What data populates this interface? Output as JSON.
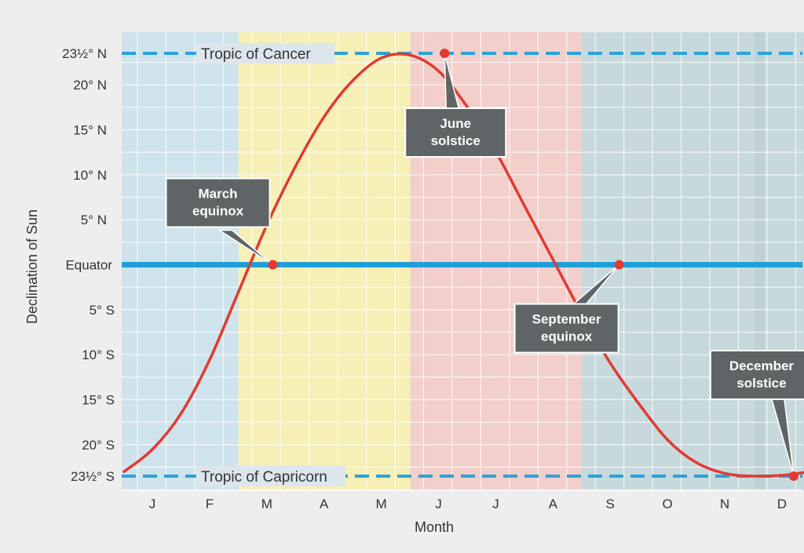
{
  "chart_data": {
    "type": "line",
    "xlabel": "Month",
    "ylabel": "Declination of Sun",
    "months": [
      "J",
      "F",
      "M",
      "A",
      "M",
      "J",
      "J",
      "A",
      "S",
      "O",
      "N",
      "D"
    ],
    "ylim": [
      -23.5,
      23.5
    ],
    "yticks": [
      {
        "value": 23.5,
        "label": "23½° N"
      },
      {
        "value": 20,
        "label": "20° N"
      },
      {
        "value": 15,
        "label": "15° N"
      },
      {
        "value": 10,
        "label": "10° N"
      },
      {
        "value": 5,
        "label": "5° N"
      },
      {
        "value": 0,
        "label": "Equator"
      },
      {
        "value": -5,
        "label": "5° S"
      },
      {
        "value": -10,
        "label": "10° S"
      },
      {
        "value": -15,
        "label": "15° S"
      },
      {
        "value": -20,
        "label": "20° S"
      },
      {
        "value": -23.5,
        "label": "23½° S"
      }
    ],
    "reference_lines": [
      {
        "name": "Tropic of Cancer",
        "value": 23.5,
        "color": "#2aa3d9"
      },
      {
        "name": "Equator",
        "value": 0,
        "color": "#1e9fd8"
      },
      {
        "name": "Tropic of Capricorn",
        "value": -23.5,
        "color": "#2aa3d9"
      }
    ],
    "season_bands": [
      {
        "from": 0,
        "to": 2,
        "color": "#cfe3ec"
      },
      {
        "from": 2,
        "to": 5,
        "color": "#f6efb6"
      },
      {
        "from": 5,
        "to": 8,
        "color": "#f2cfcb"
      },
      {
        "from": 8,
        "to": 12,
        "color": "#c7d9dc"
      }
    ],
    "series": [
      {
        "color": "#e03a33",
        "x": [
          0,
          0.5,
          1,
          1.5,
          2,
          2.5,
          3,
          3.5,
          4,
          4.5,
          5,
          5.5,
          6,
          6.5,
          7,
          7.5,
          8,
          8.5,
          9,
          9.5,
          10,
          10.5,
          11,
          11.5,
          12
        ],
        "y": [
          -23.0,
          -20.5,
          -16.5,
          -10.5,
          -3.0,
          4.5,
          11.0,
          16.5,
          20.5,
          23.0,
          23.3,
          21.5,
          17.5,
          12.5,
          6.5,
          0.5,
          -5.5,
          -11.0,
          -15.5,
          -19.5,
          -22.0,
          -23.2,
          -23.5,
          -23.4,
          -23.0
        ]
      }
    ],
    "annotations": [
      {
        "text": [
          "March",
          "equinox"
        ],
        "x": 2.6,
        "y": 0
      },
      {
        "text": [
          "June",
          "solstice"
        ],
        "x": 5.6,
        "y": 23.5
      },
      {
        "text": [
          "September",
          "equinox"
        ],
        "x": 8.65,
        "y": 0
      },
      {
        "text": [
          "December",
          "solstice"
        ],
        "x": 11.7,
        "y": -23.5
      }
    ],
    "grid": true,
    "legend": "none"
  }
}
